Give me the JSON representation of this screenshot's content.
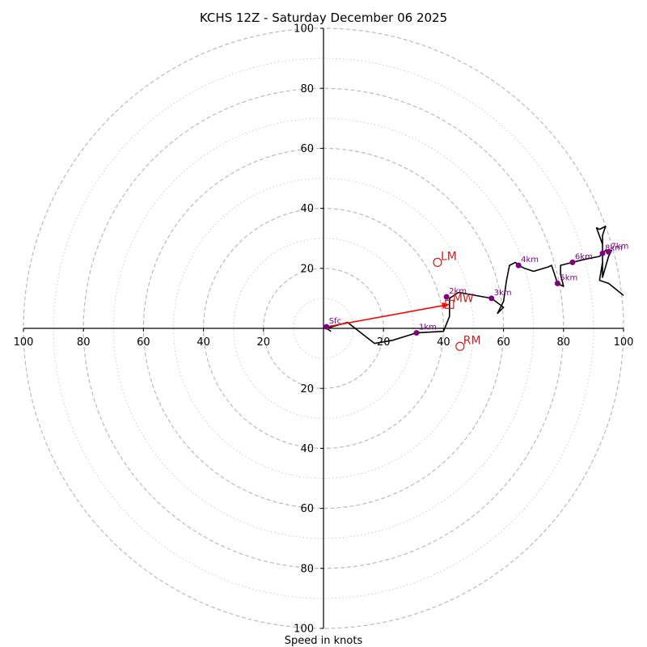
{
  "chart_data": {
    "type": "line",
    "title": "KCHS 12Z - Saturday December 06 2025",
    "xlabel": "Speed in knots",
    "ylabel": "",
    "xlim": [
      -100,
      100
    ],
    "ylim": [
      -100,
      100
    ],
    "rings_major": [
      20,
      40,
      60,
      80,
      100
    ],
    "rings_minor": [
      10,
      30,
      50,
      70,
      90
    ],
    "ticks": {
      "x_left": [
        {
          "v": -100,
          "label": "100"
        },
        {
          "v": -80,
          "label": "80"
        },
        {
          "v": -60,
          "label": "60"
        },
        {
          "v": -40,
          "label": "40"
        },
        {
          "v": -20,
          "label": "20"
        }
      ],
      "x_right": [
        {
          "v": 20,
          "label": "20"
        },
        {
          "v": 40,
          "label": "40"
        },
        {
          "v": 60,
          "label": "60"
        },
        {
          "v": 80,
          "label": "80"
        },
        {
          "v": 100,
          "label": "100"
        }
      ],
      "y_up": [
        {
          "v": 20,
          "label": "20"
        },
        {
          "v": 40,
          "label": "40"
        },
        {
          "v": 60,
          "label": "60"
        },
        {
          "v": 80,
          "label": "80"
        },
        {
          "v": 100,
          "label": "100"
        }
      ],
      "y_down": [
        {
          "v": -20,
          "label": "20"
        },
        {
          "v": -40,
          "label": "40"
        },
        {
          "v": -60,
          "label": "60"
        },
        {
          "v": -80,
          "label": "80"
        },
        {
          "v": -100,
          "label": "100"
        }
      ]
    },
    "series": [
      {
        "name": "hodograph",
        "color": "#000000",
        "points": [
          [
            2.5,
            -1
          ],
          [
            1,
            0
          ],
          [
            8,
            2
          ],
          [
            17,
            -5
          ],
          [
            23,
            -4
          ],
          [
            31,
            -1.5
          ],
          [
            40,
            -1
          ],
          [
            42,
            4
          ],
          [
            42,
            8
          ],
          [
            42,
            10
          ],
          [
            45,
            12
          ],
          [
            56,
            10
          ],
          [
            60,
            7
          ],
          [
            58,
            5
          ],
          [
            60,
            9
          ],
          [
            61,
            16
          ],
          [
            62,
            21
          ],
          [
            64,
            22
          ],
          [
            65,
            21
          ],
          [
            67,
            20
          ],
          [
            70,
            19
          ],
          [
            75,
            20.5
          ],
          [
            76,
            21
          ],
          [
            77,
            18
          ],
          [
            78,
            15
          ],
          [
            80,
            14
          ],
          [
            79,
            18
          ],
          [
            79,
            21
          ],
          [
            83,
            22
          ],
          [
            87,
            23
          ],
          [
            92,
            24
          ],
          [
            93,
            25
          ],
          [
            94,
            26
          ],
          [
            95,
            26
          ],
          [
            96,
            26
          ],
          [
            95,
            24
          ],
          [
            93,
            17
          ],
          [
            93,
            26
          ],
          [
            93,
            31
          ],
          [
            94,
            34
          ],
          [
            92,
            33
          ],
          [
            91,
            33.5
          ],
          [
            93,
            28
          ],
          [
            93,
            22
          ],
          [
            92,
            16
          ],
          [
            95,
            15
          ],
          [
            100,
            11
          ]
        ]
      }
    ],
    "height_markers": [
      {
        "label": "Sfc",
        "x": 1,
        "y": 0.5
      },
      {
        "label": "1km",
        "x": 31,
        "y": -1.5
      },
      {
        "label": "2km",
        "x": 41,
        "y": 10.5
      },
      {
        "label": "3km",
        "x": 56,
        "y": 10
      },
      {
        "label": "4km",
        "x": 65,
        "y": 21
      },
      {
        "label": "5km",
        "x": 78,
        "y": 15
      },
      {
        "label": "6km",
        "x": 83,
        "y": 22
      },
      {
        "label": "7km",
        "x": 95,
        "y": 25.5
      },
      {
        "label": "8km",
        "x": 93,
        "y": 25
      }
    ],
    "marker_color": "#800080",
    "storm_motion": [
      {
        "label": "LM",
        "x": 38,
        "y": 22
      },
      {
        "label": "RM",
        "x": 45.5,
        "y": -6
      },
      {
        "label": "MW",
        "x": 42,
        "y": 8
      }
    ],
    "storm_color": "#c82020",
    "shear_vector": {
      "from": [
        1,
        0.5
      ],
      "to": [
        42,
        8
      ],
      "color": "#ff0000"
    }
  }
}
